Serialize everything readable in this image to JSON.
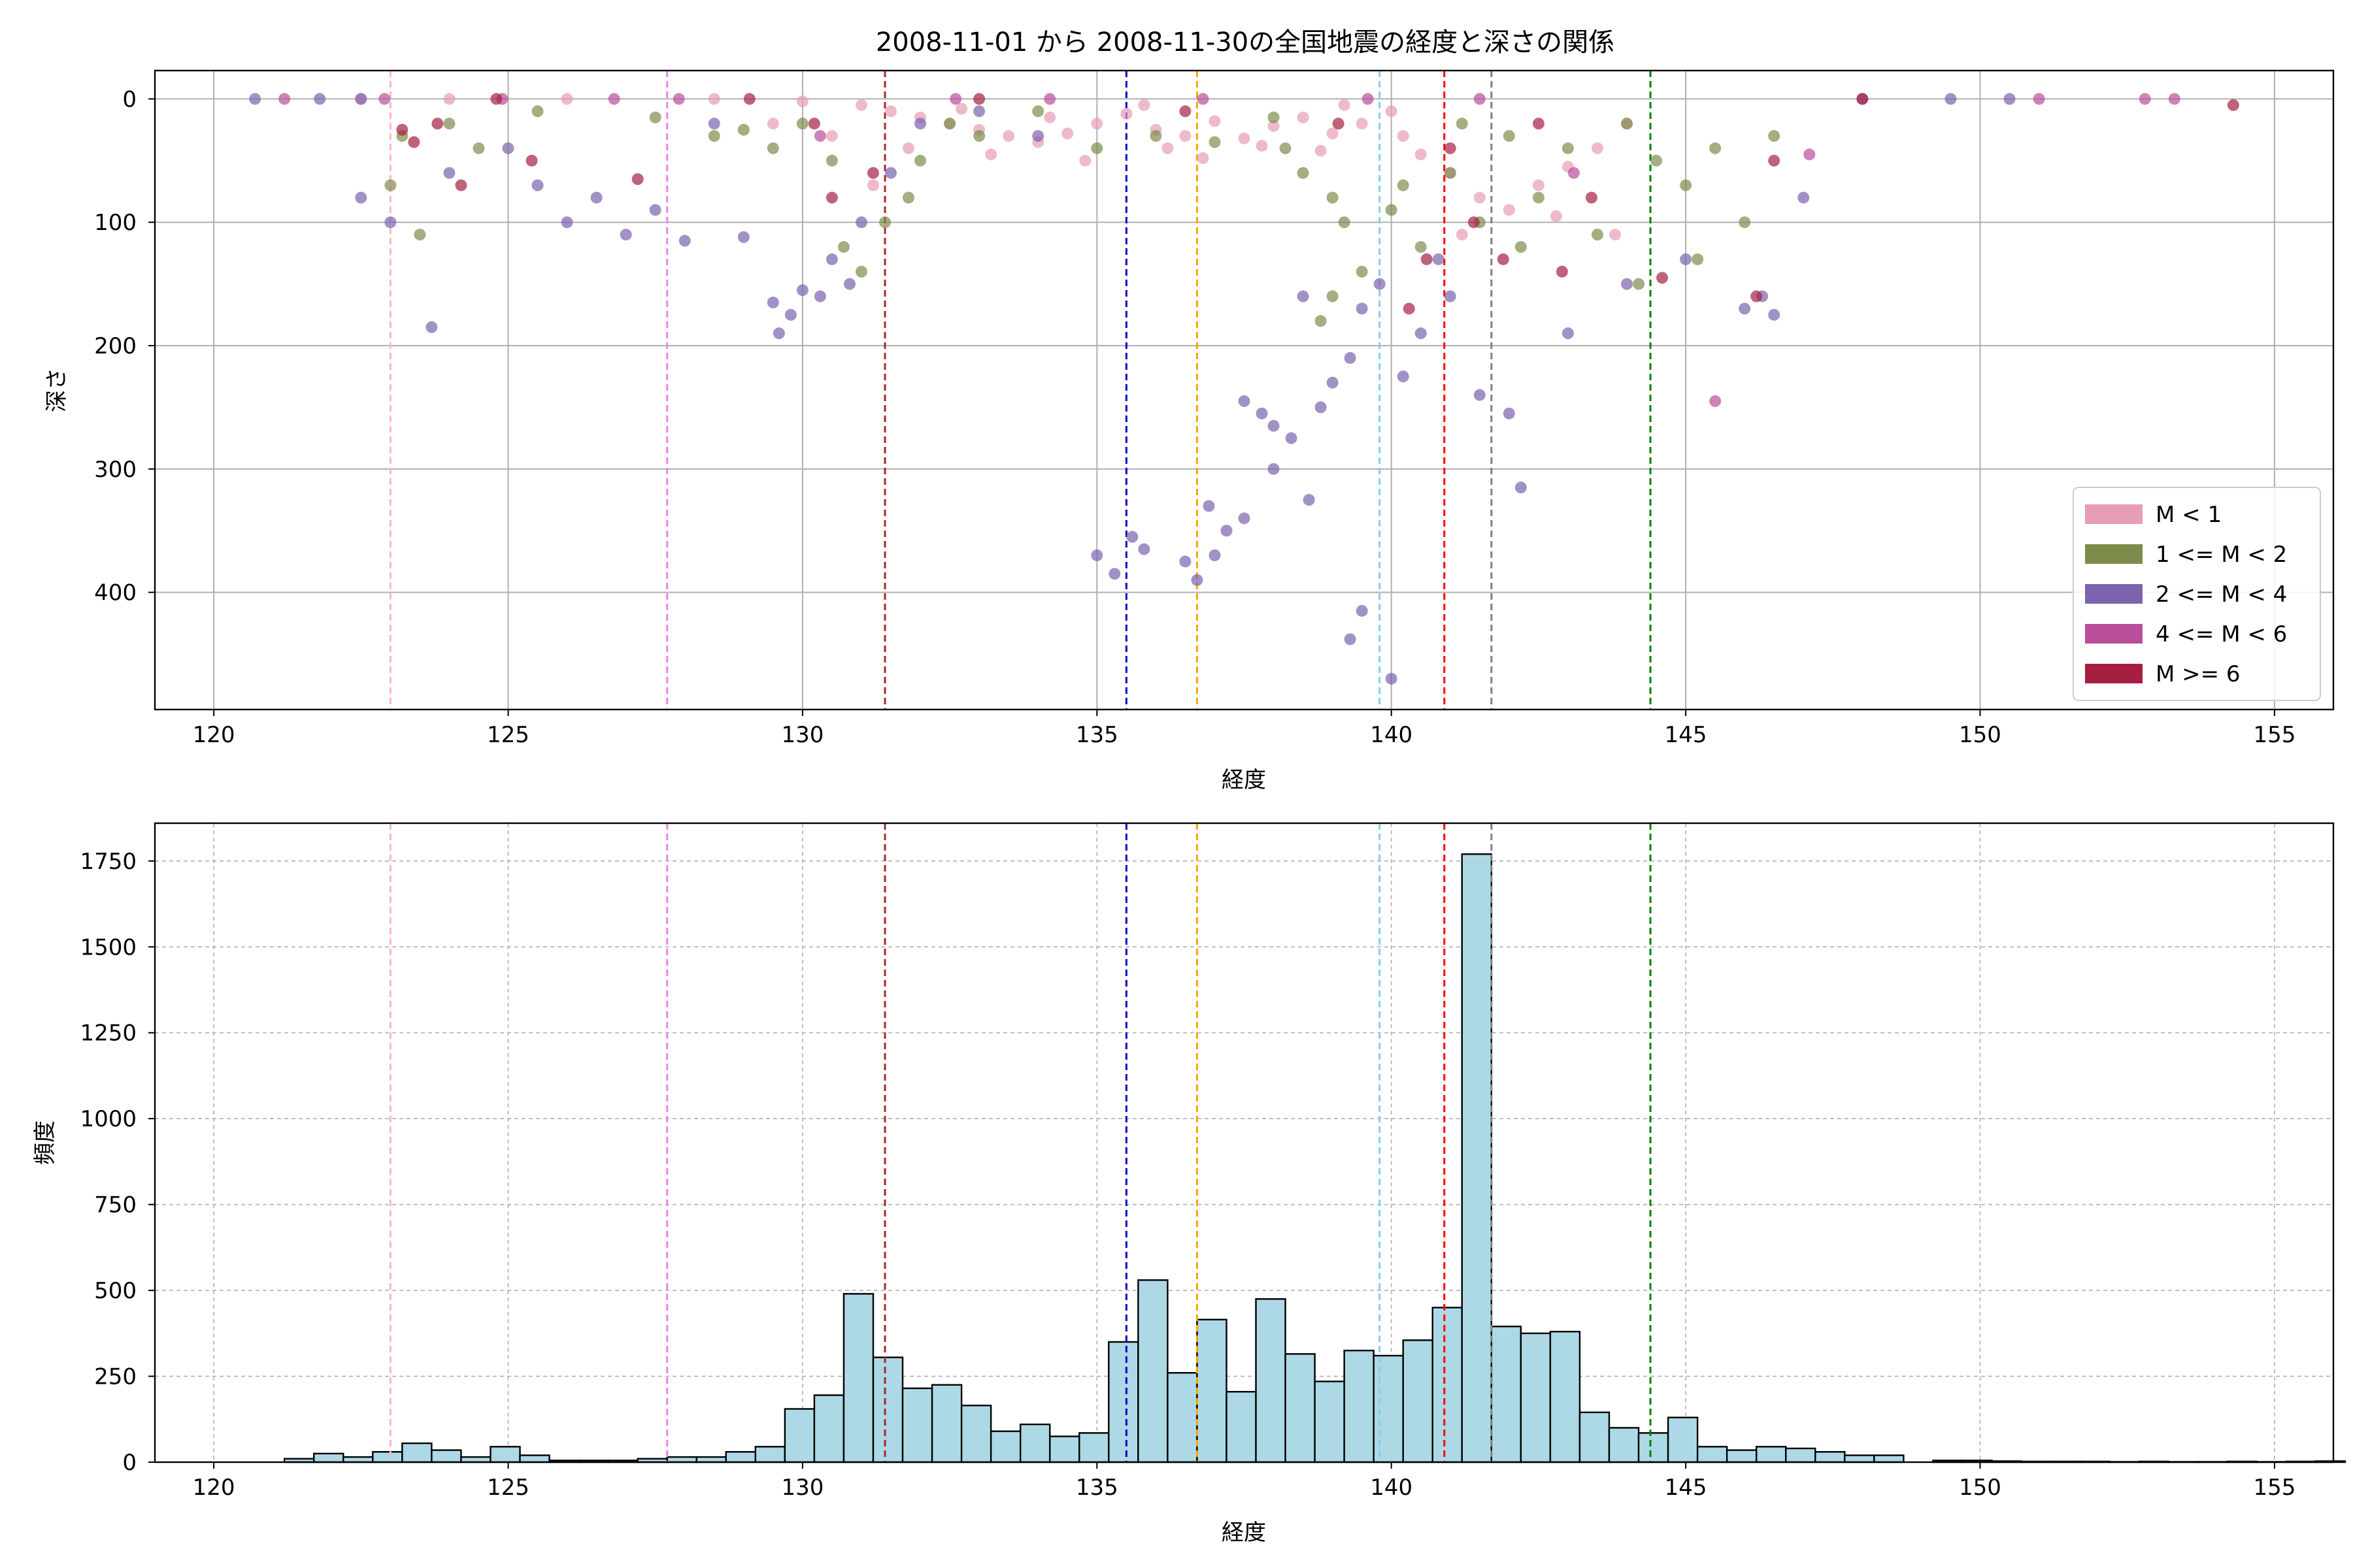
{
  "chart_data": [
    {
      "type": "scatter",
      "title": "2008-11-01 から 2008-11-30の全国地震の経度と深さの関係",
      "xlabel": "経度",
      "ylabel": "深さ",
      "xlim": [
        119,
        156
      ],
      "ylim": [
        495,
        -23
      ],
      "y_inverted": true,
      "grid": true,
      "xticks": [
        120,
        125,
        130,
        135,
        140,
        145,
        150,
        155
      ],
      "yticks": [
        0,
        100,
        200,
        300,
        400
      ],
      "legend": {
        "placement": "lower-right",
        "entries": [
          {
            "label": "M < 1",
            "color": "#e79db5"
          },
          {
            "label": "1 <= M < 2",
            "color": "#7d8c4a"
          },
          {
            "label": "2 <= M < 4",
            "color": "#7b63ad"
          },
          {
            "label": "4 <= M < 6",
            "color": "#b94e9a"
          },
          {
            "label": "M >= 6",
            "color": "#a51f42"
          }
        ]
      },
      "vlines": [
        {
          "x": 123.0,
          "color": "#ffb6c1"
        },
        {
          "x": 127.7,
          "color": "#ee82ee"
        },
        {
          "x": 131.4,
          "color": "#a52a2a"
        },
        {
          "x": 135.5,
          "color": "#0000cd"
        },
        {
          "x": 136.7,
          "color": "#ffa500"
        },
        {
          "x": 139.8,
          "color": "#87ceeb"
        },
        {
          "x": 140.9,
          "color": "#ff0000"
        },
        {
          "x": 141.7,
          "color": "#808080"
        },
        {
          "x": 144.4,
          "color": "#008000"
        }
      ],
      "series": [
        {
          "name": "M < 1",
          "color": "#e79db5",
          "points": [
            [
              122.5,
              0
            ],
            [
              124.0,
              0
            ],
            [
              126.0,
              0
            ],
            [
              128.5,
              0
            ],
            [
              130.0,
              2
            ],
            [
              131.0,
              5
            ],
            [
              131.5,
              10
            ],
            [
              132.0,
              15
            ],
            [
              132.5,
              20
            ],
            [
              133.0,
              25
            ],
            [
              133.5,
              30
            ],
            [
              134.0,
              35
            ],
            [
              134.5,
              28
            ],
            [
              135.0,
              20
            ],
            [
              135.5,
              12
            ],
            [
              136.0,
              25
            ],
            [
              136.5,
              30
            ],
            [
              137.0,
              18
            ],
            [
              137.5,
              32
            ],
            [
              138.0,
              22
            ],
            [
              138.5,
              15
            ],
            [
              139.0,
              28
            ],
            [
              139.5,
              20
            ],
            [
              140.0,
              10
            ],
            [
              140.5,
              45
            ],
            [
              141.0,
              60
            ],
            [
              141.5,
              80
            ],
            [
              142.0,
              90
            ],
            [
              142.5,
              70
            ],
            [
              143.0,
              55
            ],
            [
              143.5,
              40
            ],
            [
              144.0,
              20
            ],
            [
              131.8,
              40
            ],
            [
              133.2,
              45
            ],
            [
              134.8,
              50
            ],
            [
              136.2,
              40
            ],
            [
              137.8,
              38
            ],
            [
              132.7,
              8
            ],
            [
              135.8,
              5
            ],
            [
              138.8,
              42
            ],
            [
              141.2,
              110
            ],
            [
              142.8,
              95
            ],
            [
              140.2,
              30
            ],
            [
              139.2,
              5
            ],
            [
              136.8,
              48
            ],
            [
              134.2,
              15
            ],
            [
              130.5,
              30
            ],
            [
              129.5,
              20
            ],
            [
              131.2,
              70
            ],
            [
              143.8,
              110
            ]
          ]
        },
        {
          "name": "1 <= M < 2",
          "color": "#7d8c4a",
          "points": [
            [
              123.2,
              30
            ],
            [
              123.0,
              70
            ],
            [
              123.5,
              110
            ],
            [
              124.0,
              20
            ],
            [
              124.5,
              40
            ],
            [
              125.5,
              10
            ],
            [
              127.5,
              15
            ],
            [
              128.5,
              30
            ],
            [
              129.0,
              25
            ],
            [
              129.5,
              40
            ],
            [
              130.0,
              20
            ],
            [
              130.5,
              50
            ],
            [
              130.7,
              120
            ],
            [
              131.0,
              140
            ],
            [
              131.4,
              100
            ],
            [
              131.8,
              80
            ],
            [
              132.0,
              50
            ],
            [
              132.5,
              20
            ],
            [
              133.0,
              30
            ],
            [
              134.0,
              10
            ],
            [
              135.0,
              40
            ],
            [
              136.0,
              30
            ],
            [
              137.0,
              35
            ],
            [
              138.0,
              15
            ],
            [
              138.5,
              60
            ],
            [
              139.0,
              80
            ],
            [
              139.2,
              100
            ],
            [
              139.5,
              140
            ],
            [
              139.0,
              160
            ],
            [
              138.8,
              180
            ],
            [
              140.0,
              90
            ],
            [
              140.5,
              120
            ],
            [
              141.0,
              60
            ],
            [
              141.5,
              100
            ],
            [
              142.0,
              30
            ],
            [
              142.5,
              80
            ],
            [
              143.0,
              40
            ],
            [
              143.5,
              110
            ],
            [
              144.0,
              20
            ],
            [
              144.5,
              50
            ],
            [
              145.0,
              70
            ],
            [
              145.5,
              40
            ],
            [
              146.0,
              100
            ],
            [
              146.5,
              30
            ],
            [
              145.2,
              130
            ],
            [
              144.2,
              150
            ],
            [
              141.2,
              20
            ],
            [
              140.2,
              70
            ],
            [
              142.2,
              120
            ],
            [
              138.2,
              40
            ]
          ]
        },
        {
          "name": "2 <= M < 4",
          "color": "#7b63ad",
          "points": [
            [
              120.7,
              0
            ],
            [
              121.8,
              0
            ],
            [
              122.5,
              0
            ],
            [
              123.0,
              100
            ],
            [
              122.5,
              80
            ],
            [
              123.7,
              185
            ],
            [
              124.0,
              60
            ],
            [
              125.0,
              40
            ],
            [
              125.5,
              70
            ],
            [
              126.0,
              100
            ],
            [
              126.5,
              80
            ],
            [
              127.0,
              110
            ],
            [
              127.5,
              90
            ],
            [
              128.0,
              115
            ],
            [
              128.5,
              20
            ],
            [
              129.0,
              112
            ],
            [
              129.5,
              165
            ],
            [
              129.6,
              190
            ],
            [
              129.8,
              175
            ],
            [
              130.0,
              155
            ],
            [
              130.5,
              130
            ],
            [
              130.3,
              160
            ],
            [
              130.8,
              150
            ],
            [
              131.0,
              100
            ],
            [
              131.5,
              60
            ],
            [
              132.0,
              20
            ],
            [
              133.0,
              10
            ],
            [
              134.0,
              30
            ],
            [
              135.0,
              370
            ],
            [
              135.3,
              385
            ],
            [
              135.6,
              355
            ],
            [
              135.8,
              365
            ],
            [
              136.5,
              375
            ],
            [
              136.7,
              390
            ],
            [
              137.0,
              370
            ],
            [
              137.2,
              350
            ],
            [
              137.5,
              340
            ],
            [
              138.0,
              300
            ],
            [
              138.3,
              275
            ],
            [
              138.6,
              325
            ],
            [
              138.8,
              250
            ],
            [
              139.0,
              230
            ],
            [
              139.3,
              210
            ],
            [
              139.5,
              170
            ],
            [
              139.8,
              150
            ],
            [
              139.5,
              415
            ],
            [
              139.3,
              438
            ],
            [
              140.0,
              470
            ],
            [
              140.2,
              225
            ],
            [
              140.5,
              190
            ],
            [
              141.0,
              160
            ],
            [
              141.5,
              240
            ],
            [
              142.0,
              255
            ],
            [
              142.2,
              315
            ],
            [
              143.0,
              190
            ],
            [
              144.0,
              150
            ],
            [
              145.0,
              130
            ],
            [
              146.0,
              170
            ],
            [
              146.5,
              175
            ],
            [
              147.0,
              80
            ],
            [
              148.0,
              0
            ],
            [
              149.5,
              0
            ],
            [
              150.5,
              0
            ],
            [
              137.5,
              245
            ],
            [
              138.0,
              265
            ],
            [
              137.8,
              255
            ],
            [
              136.9,
              330
            ],
            [
              138.5,
              160
            ],
            [
              140.8,
              130
            ],
            [
              146.3,
              160
            ]
          ]
        },
        {
          "name": "4 <= M < 6",
          "color": "#b94e9a",
          "points": [
            [
              121.2,
              0
            ],
            [
              122.9,
              0
            ],
            [
              124.9,
              0
            ],
            [
              126.8,
              0
            ],
            [
              127.9,
              0
            ],
            [
              130.3,
              30
            ],
            [
              132.6,
              0
            ],
            [
              134.2,
              0
            ],
            [
              136.8,
              0
            ],
            [
              139.6,
              0
            ],
            [
              141.5,
              0
            ],
            [
              143.1,
              60
            ],
            [
              145.5,
              245
            ],
            [
              147.1,
              45
            ],
            [
              151.0,
              0
            ],
            [
              152.8,
              0
            ],
            [
              153.3,
              0
            ]
          ]
        },
        {
          "name": "M >= 6",
          "color": "#a51f42",
          "points": [
            [
              123.2,
              25
            ],
            [
              123.4,
              35
            ],
            [
              123.8,
              20
            ],
            [
              124.2,
              70
            ],
            [
              124.8,
              0
            ],
            [
              125.4,
              50
            ],
            [
              127.2,
              65
            ],
            [
              129.1,
              0
            ],
            [
              130.2,
              20
            ],
            [
              130.5,
              80
            ],
            [
              131.2,
              60
            ],
            [
              136.5,
              10
            ],
            [
              139.1,
              20
            ],
            [
              140.3,
              170
            ],
            [
              140.6,
              130
            ],
            [
              141.4,
              100
            ],
            [
              141.9,
              130
            ],
            [
              142.9,
              140
            ],
            [
              143.4,
              80
            ],
            [
              144.6,
              145
            ],
            [
              146.2,
              160
            ],
            [
              146.5,
              50
            ],
            [
              154.3,
              5
            ],
            [
              141.0,
              40
            ],
            [
              142.5,
              20
            ],
            [
              133.0,
              0
            ],
            [
              148.0,
              0
            ]
          ]
        }
      ]
    },
    {
      "type": "bar",
      "subtype": "histogram",
      "xlabel": "経度",
      "ylabel": "頻度",
      "xlim": [
        119,
        156
      ],
      "ylim": [
        0,
        1860
      ],
      "grid": true,
      "grid_style": "dashed",
      "xticks": [
        120,
        125,
        130,
        135,
        140,
        145,
        150,
        155
      ],
      "yticks": [
        0,
        250,
        500,
        750,
        1000,
        1250,
        1500,
        1750
      ],
      "bar_color": "#add8e6",
      "bin_start": 121.2,
      "bin_width": 0.5,
      "values": [
        10,
        25,
        15,
        30,
        55,
        35,
        15,
        45,
        20,
        5,
        5,
        5,
        10,
        15,
        15,
        30,
        45,
        155,
        195,
        490,
        305,
        215,
        225,
        165,
        90,
        110,
        75,
        85,
        350,
        530,
        260,
        415,
        205,
        475,
        315,
        235,
        325,
        310,
        355,
        450,
        1770,
        395,
        375,
        380,
        145,
        100,
        85,
        130,
        45,
        35,
        45,
        40,
        30,
        20,
        20,
        0,
        5,
        5,
        3,
        2,
        2,
        2,
        1,
        2,
        1,
        1,
        2,
        1,
        2,
        3,
        0,
        1,
        0,
        0,
        0,
        0,
        0,
        0,
        1
      ],
      "vlines": [
        {
          "x": 123.0,
          "color": "#ffb6c1"
        },
        {
          "x": 127.7,
          "color": "#ee82ee"
        },
        {
          "x": 131.4,
          "color": "#a52a2a"
        },
        {
          "x": 135.5,
          "color": "#0000cd"
        },
        {
          "x": 136.7,
          "color": "#ffa500"
        },
        {
          "x": 139.8,
          "color": "#87ceeb"
        },
        {
          "x": 140.9,
          "color": "#ff0000"
        },
        {
          "x": 141.7,
          "color": "#808080"
        },
        {
          "x": 144.4,
          "color": "#008000"
        }
      ]
    }
  ]
}
